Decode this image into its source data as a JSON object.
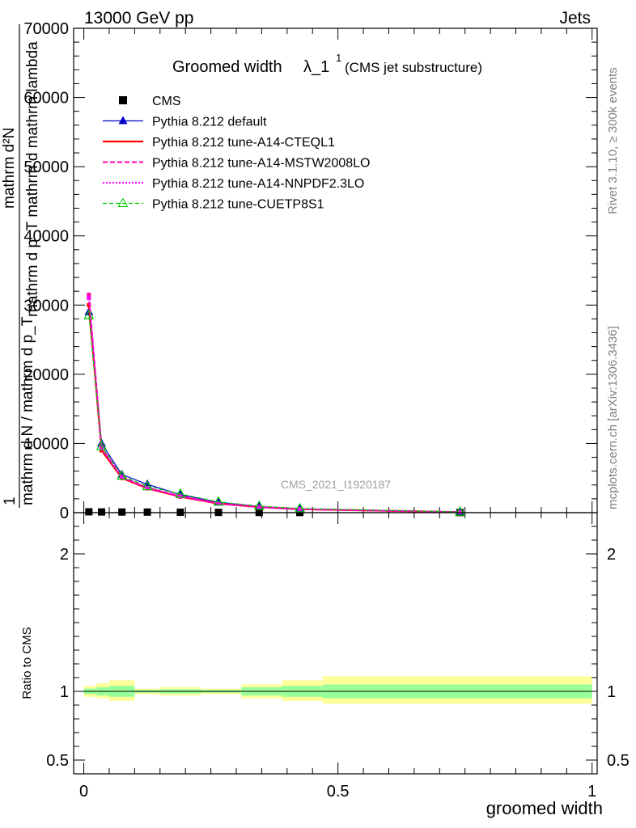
{
  "header": {
    "energy_label": "13000 GeV pp",
    "category_label": "Jets"
  },
  "side_labels": {
    "rivet": "Rivet 3.1.10, ≥ 300k events",
    "source": "mcplots.cern.ch [arXiv:1306.3436]"
  },
  "watermark": "CMS_2021_I1920187",
  "colors": {
    "data": "#000000",
    "default": "#0000cc",
    "cteql1": "#ff0000",
    "mstw": "#ff00aa",
    "nnpdf": "#ff00ff",
    "cuetp8s1": "#00cc00",
    "band_outer": "#ffff99",
    "band_inner": "#99ff99"
  },
  "chart_data": [
    {
      "type": "line",
      "panel": "main",
      "title": "Groomed width",
      "title_symbol": "λ_1",
      "title_superscript": "1",
      "subtitle": "(CMS jet substructure)",
      "ylabel_numerator": "mathrm d²N",
      "ylabel_denominator": "mathrm d p_T mathrm d mathrm lambda",
      "ylabel_prefix": "1",
      "ylabel_norm": "mathrm d N / mathrm d p_T",
      "ylim": [
        0,
        70000
      ],
      "xlim": [
        -0.02,
        1.01
      ],
      "y_ticks": [
        0,
        10000,
        20000,
        30000,
        40000,
        50000,
        60000,
        70000
      ],
      "y_tick_labels": [
        "0",
        "10000",
        "20000",
        "30000",
        "40000",
        "50000",
        "60000",
        "70000"
      ],
      "x": [
        0.01,
        0.035,
        0.075,
        0.125,
        0.19,
        0.265,
        0.345,
        0.425,
        0.74
      ],
      "series": [
        {
          "name": "CMS",
          "key": "data",
          "values": [
            120,
            100,
            90,
            80,
            60,
            40,
            30,
            20,
            10
          ]
        },
        {
          "name": "Pythia 8.212 default",
          "key": "default",
          "values": [
            29000,
            10000,
            5500,
            4100,
            2600,
            1500,
            900,
            550,
            100
          ]
        },
        {
          "name": "Pythia 8.212 tune-A14-CTEQL1",
          "key": "cteql1",
          "values": [
            30000,
            9000,
            5000,
            3500,
            2300,
            1300,
            800,
            500,
            80
          ]
        },
        {
          "name": "Pythia 8.212 tune-A14-MSTW2008LO",
          "key": "mstw",
          "values": [
            31500,
            9400,
            5200,
            3600,
            2400,
            1350,
            820,
            510,
            90
          ]
        },
        {
          "name": "Pythia 8.212 tune-A14-NNPDF2.3LO",
          "key": "nnpdf",
          "values": [
            31000,
            9300,
            5100,
            3550,
            2350,
            1320,
            810,
            505,
            85
          ]
        },
        {
          "name": "Pythia 8.212 tune-CUETP8S1",
          "key": "cuetp8s1",
          "values": [
            28500,
            9600,
            5300,
            3800,
            2700,
            1550,
            950,
            600,
            100
          ]
        }
      ]
    },
    {
      "type": "area",
      "panel": "ratio",
      "ylabel": "Ratio to CMS",
      "xlabel": "groomed width",
      "ylim": [
        0.4,
        2.3
      ],
      "y_ticks": [
        0.5,
        1,
        2
      ],
      "y_tick_labels": [
        "0.5",
        "1",
        "2"
      ],
      "x_ticks": [
        0,
        0.5,
        1
      ],
      "x_tick_labels": [
        "0",
        "0.5",
        "1"
      ],
      "bin_edges": [
        0.0,
        0.025,
        0.05,
        0.1,
        0.15,
        0.23,
        0.31,
        0.39,
        0.47,
        1.0
      ],
      "outer_band": {
        "low": [
          0.96,
          0.95,
          0.93,
          0.98,
          0.97,
          0.98,
          0.95,
          0.93,
          0.91
        ],
        "high": [
          1.04,
          1.06,
          1.08,
          1.02,
          1.03,
          1.02,
          1.05,
          1.08,
          1.11
        ]
      },
      "inner_band": {
        "low": [
          0.98,
          0.97,
          0.96,
          0.99,
          0.985,
          0.99,
          0.97,
          0.96,
          0.95
        ],
        "high": [
          1.02,
          1.03,
          1.04,
          1.01,
          1.015,
          1.01,
          1.03,
          1.04,
          1.05
        ]
      },
      "reference": 1
    }
  ]
}
